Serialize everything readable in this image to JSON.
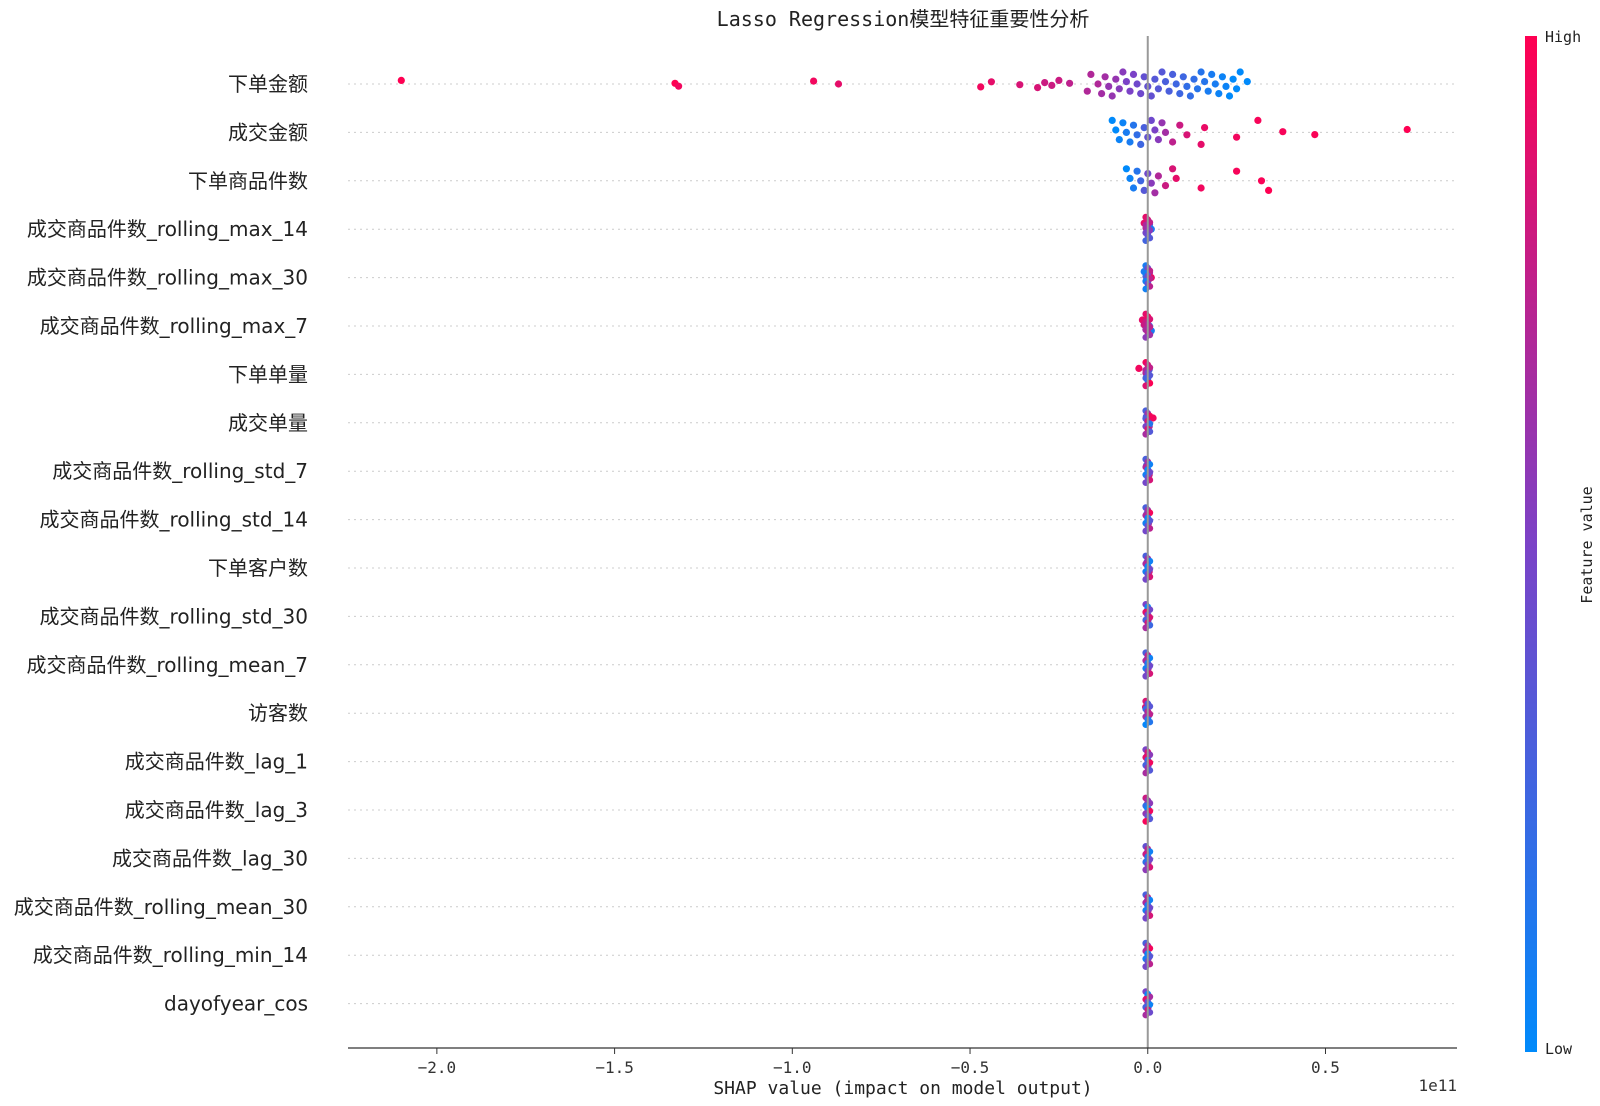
{
  "chart_data": {
    "type": "scatter",
    "subtype": "shap-beeswarm",
    "title": "Lasso Regression模型特征重要性分析",
    "xlabel": "SHAP value (impact on model output)",
    "x_scale_note": "1e11",
    "xlim": [
      -2.25,
      0.87
    ],
    "xticks": [
      -2.0,
      -1.5,
      -1.0,
      -0.5,
      0.0,
      0.5
    ],
    "xtick_labels": [
      "−2.0",
      "−1.5",
      "−1.0",
      "−0.5",
      "0.0",
      "0.5"
    ],
    "colorbar": {
      "label": "Feature value",
      "high": "High",
      "low": "Low",
      "high_color": "#ff0052",
      "mid_color": "#7b42c7",
      "low_color": "#008afb"
    },
    "features": [
      {
        "name": "下单金额",
        "points": [
          [
            -2.1,
            1.0
          ],
          [
            -1.33,
            1.0
          ],
          [
            -1.32,
            0.95
          ],
          [
            -0.94,
            0.95
          ],
          [
            -0.87,
            0.9
          ],
          [
            -0.47,
            0.95
          ],
          [
            -0.44,
            0.9
          ],
          [
            -0.36,
            0.85
          ],
          [
            -0.31,
            0.85
          ],
          [
            -0.29,
            0.8
          ],
          [
            -0.27,
            0.8
          ],
          [
            -0.25,
            0.8
          ],
          [
            -0.22,
            0.75
          ],
          [
            -0.17,
            0.7
          ],
          [
            -0.16,
            0.7
          ],
          [
            -0.14,
            0.7
          ],
          [
            -0.13,
            0.65
          ],
          [
            -0.12,
            0.65
          ],
          [
            -0.11,
            0.6
          ],
          [
            -0.1,
            0.6
          ],
          [
            -0.09,
            0.6
          ],
          [
            -0.08,
            0.55
          ],
          [
            -0.07,
            0.55
          ],
          [
            -0.06,
            0.5
          ],
          [
            -0.05,
            0.5
          ],
          [
            -0.04,
            0.5
          ],
          [
            -0.03,
            0.45
          ],
          [
            -0.02,
            0.45
          ],
          [
            -0.01,
            0.4
          ],
          [
            0.0,
            0.4
          ],
          [
            0.01,
            0.4
          ],
          [
            0.02,
            0.35
          ],
          [
            0.03,
            0.35
          ],
          [
            0.04,
            0.35
          ],
          [
            0.05,
            0.3
          ],
          [
            0.06,
            0.3
          ],
          [
            0.07,
            0.3
          ],
          [
            0.08,
            0.25
          ],
          [
            0.09,
            0.25
          ],
          [
            0.1,
            0.25
          ],
          [
            0.11,
            0.2
          ],
          [
            0.12,
            0.2
          ],
          [
            0.13,
            0.2
          ],
          [
            0.14,
            0.15
          ],
          [
            0.15,
            0.15
          ],
          [
            0.16,
            0.15
          ],
          [
            0.17,
            0.1
          ],
          [
            0.18,
            0.1
          ],
          [
            0.19,
            0.1
          ],
          [
            0.2,
            0.05
          ],
          [
            0.21,
            0.05
          ],
          [
            0.22,
            0.05
          ],
          [
            0.23,
            0.0
          ],
          [
            0.24,
            0.0
          ],
          [
            0.25,
            0.0
          ],
          [
            0.26,
            0.0
          ],
          [
            0.28,
            0.0
          ]
        ]
      },
      {
        "name": "成交金额",
        "points": [
          [
            -0.1,
            0.0
          ],
          [
            -0.09,
            0.0
          ],
          [
            -0.08,
            0.05
          ],
          [
            -0.07,
            0.05
          ],
          [
            -0.06,
            0.1
          ],
          [
            -0.05,
            0.1
          ],
          [
            -0.04,
            0.15
          ],
          [
            -0.03,
            0.2
          ],
          [
            -0.02,
            0.25
          ],
          [
            -0.01,
            0.3
          ],
          [
            0.0,
            0.4
          ],
          [
            0.01,
            0.45
          ],
          [
            0.02,
            0.5
          ],
          [
            0.03,
            0.55
          ],
          [
            0.04,
            0.6
          ],
          [
            0.05,
            0.65
          ],
          [
            0.07,
            0.75
          ],
          [
            0.09,
            0.8
          ],
          [
            0.11,
            0.85
          ],
          [
            0.15,
            0.9
          ],
          [
            0.16,
            0.92
          ],
          [
            0.25,
            0.95
          ],
          [
            0.31,
            0.97
          ],
          [
            0.38,
            0.97
          ],
          [
            0.47,
            0.98
          ],
          [
            0.73,
            1.0
          ]
        ]
      },
      {
        "name": "下单商品件数",
        "points": [
          [
            -0.06,
            0.0
          ],
          [
            -0.05,
            0.05
          ],
          [
            -0.04,
            0.1
          ],
          [
            -0.03,
            0.15
          ],
          [
            -0.02,
            0.25
          ],
          [
            -0.01,
            0.35
          ],
          [
            0.0,
            0.45
          ],
          [
            0.01,
            0.55
          ],
          [
            0.02,
            0.65
          ],
          [
            0.03,
            0.7
          ],
          [
            0.05,
            0.8
          ],
          [
            0.07,
            0.85
          ],
          [
            0.08,
            0.9
          ],
          [
            0.15,
            0.95
          ],
          [
            0.25,
            0.97
          ],
          [
            0.32,
            0.98
          ],
          [
            0.34,
            1.0
          ]
        ]
      },
      {
        "name": "成交商品件数_rolling_max_14",
        "points": [
          [
            -0.01,
            0.9
          ],
          [
            -0.005,
            0.7
          ],
          [
            0.0,
            0.5
          ],
          [
            0.005,
            0.3
          ],
          [
            0.01,
            0.1
          ]
        ]
      },
      {
        "name": "成交商品件数_rolling_max_30",
        "points": [
          [
            -0.01,
            0.1
          ],
          [
            -0.005,
            0.3
          ],
          [
            0.0,
            0.5
          ],
          [
            0.005,
            0.7
          ],
          [
            0.01,
            0.9
          ]
        ]
      },
      {
        "name": "成交商品件数_rolling_max_7",
        "points": [
          [
            -0.015,
            0.9
          ],
          [
            -0.01,
            0.8
          ],
          [
            -0.005,
            0.6
          ],
          [
            0.0,
            0.4
          ],
          [
            0.005,
            0.2
          ],
          [
            0.01,
            0.1
          ]
        ]
      },
      {
        "name": "下单单量",
        "points": [
          [
            -0.025,
            0.95
          ],
          [
            -0.005,
            0.7
          ],
          [
            0.0,
            0.5
          ],
          [
            0.004,
            0.3
          ]
        ]
      },
      {
        "name": "成交单量",
        "points": [
          [
            -0.004,
            0.3
          ],
          [
            0.0,
            0.5
          ],
          [
            0.004,
            0.7
          ],
          [
            0.015,
            0.95
          ]
        ]
      },
      {
        "name": "成交商品件数_rolling_std_7",
        "points": [
          [
            -0.003,
            0.3
          ],
          [
            0.0,
            0.5
          ],
          [
            0.004,
            0.8
          ]
        ]
      },
      {
        "name": "成交商品件数_rolling_std_14",
        "points": [
          [
            -0.002,
            0.3
          ],
          [
            0.0,
            0.5
          ],
          [
            0.002,
            0.7
          ]
        ]
      },
      {
        "name": "下单客户数",
        "points": [
          [
            -0.002,
            0.3
          ],
          [
            0.0,
            0.5
          ],
          [
            0.004,
            0.8
          ]
        ]
      },
      {
        "name": "成交商品件数_rolling_std_30",
        "points": [
          [
            -0.001,
            0.5
          ],
          [
            0.0,
            0.9
          ],
          [
            0.001,
            0.2
          ]
        ]
      },
      {
        "name": "成交商品件数_rolling_mean_7",
        "points": [
          [
            -0.001,
            0.3
          ],
          [
            0.0,
            0.6
          ],
          [
            0.001,
            0.8
          ]
        ]
      },
      {
        "name": "访客数",
        "points": [
          [
            -0.006,
            0.85
          ],
          [
            0.0,
            0.2
          ],
          [
            0.001,
            0.1
          ]
        ]
      },
      {
        "name": "成交商品件数_lag_1",
        "points": [
          [
            -0.001,
            0.5
          ],
          [
            0.0,
            0.7
          ],
          [
            0.001,
            0.3
          ]
        ]
      },
      {
        "name": "成交商品件数_lag_3",
        "points": [
          [
            -0.001,
            0.8
          ],
          [
            0.0,
            0.5
          ],
          [
            0.001,
            0.3
          ]
        ]
      },
      {
        "name": "成交商品件数_lag_30",
        "points": [
          [
            -0.001,
            0.4
          ],
          [
            0.0,
            0.6
          ],
          [
            0.001,
            0.8
          ]
        ]
      },
      {
        "name": "成交商品件数_rolling_mean_30",
        "points": [
          [
            -0.001,
            0.3
          ],
          [
            0.0,
            0.6
          ],
          [
            0.001,
            0.8
          ]
        ]
      },
      {
        "name": "成交商品件数_rolling_min_14",
        "points": [
          [
            -0.001,
            0.3
          ],
          [
            0.0,
            0.5
          ],
          [
            0.001,
            0.7
          ]
        ]
      },
      {
        "name": "dayofyear_cos",
        "points": [
          [
            -0.001,
            0.5
          ],
          [
            0.0,
            0.9
          ],
          [
            0.001,
            0.4
          ]
        ]
      }
    ],
    "grid": false,
    "legend": "colorbar-right"
  }
}
